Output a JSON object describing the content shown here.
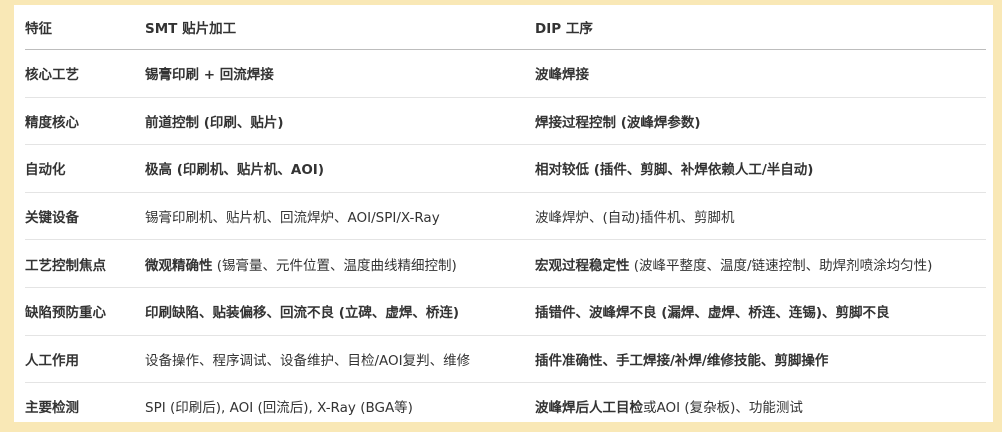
{
  "header": [
    "特征",
    "SMT 贴片加工",
    "DIP 工序"
  ],
  "rows": [
    {
      "feature": "核心工艺",
      "smt": [
        {
          "t": "锡膏印刷 + 回流焊接",
          "b": true
        }
      ],
      "dip": [
        {
          "t": "波峰焊接",
          "b": true
        }
      ]
    },
    {
      "feature": "精度核心",
      "smt": [
        {
          "t": "前道控制 (印刷、贴片)",
          "b": true
        }
      ],
      "dip": [
        {
          "t": "焊接过程控制 (波峰焊参数)",
          "b": true
        }
      ]
    },
    {
      "feature": "自动化",
      "smt": [
        {
          "t": "极高 (印刷机、贴片机、AOI)",
          "b": true
        }
      ],
      "dip": [
        {
          "t": "相对较低 (插件、剪脚、补焊依赖人工/半自动)",
          "b": true
        }
      ]
    },
    {
      "feature": "关键设备",
      "smt": [
        {
          "t": "锡膏印刷机、贴片机、回流焊炉、AOI/SPI/X-Ray",
          "b": false
        }
      ],
      "dip": [
        {
          "t": "波峰焊炉、(自动)插件机、剪脚机",
          "b": false
        }
      ]
    },
    {
      "feature": "工艺控制焦点",
      "smt": [
        {
          "t": "微观精确性",
          "b": true
        },
        {
          "t": " (锡膏量、元件位置、温度曲线精细控制)",
          "b": false
        }
      ],
      "dip": [
        {
          "t": "宏观过程稳定性",
          "b": true
        },
        {
          "t": " (波峰平整度、温度/链速控制、助焊剂喷涂均匀性)",
          "b": false
        }
      ]
    },
    {
      "feature": "缺陷预防重心",
      "smt": [
        {
          "t": "印刷缺陷、贴装偏移、回流不良 (立碑、虚焊、桥连)",
          "b": true
        }
      ],
      "dip": [
        {
          "t": "插错件、波峰焊不良 (漏焊、虚焊、桥连、连锡)、剪脚不良",
          "b": true
        }
      ]
    },
    {
      "feature": "人工作用",
      "smt": [
        {
          "t": "设备操作、程序调试、设备维护、目检/AOI复判、维修",
          "b": false
        }
      ],
      "dip": [
        {
          "t": "插件准确性、手工焊接/补焊/维修技能、剪脚操作",
          "b": true
        }
      ]
    },
    {
      "feature": "主要检测",
      "smt": [
        {
          "t": "SPI (印刷后), AOI (回流后), X-Ray (BGA等)",
          "b": false
        }
      ],
      "dip": [
        {
          "t": "波峰焊后人工目检",
          "b": true
        },
        {
          "t": "或AOI (复杂板)、功能测试",
          "b": false
        }
      ]
    }
  ]
}
